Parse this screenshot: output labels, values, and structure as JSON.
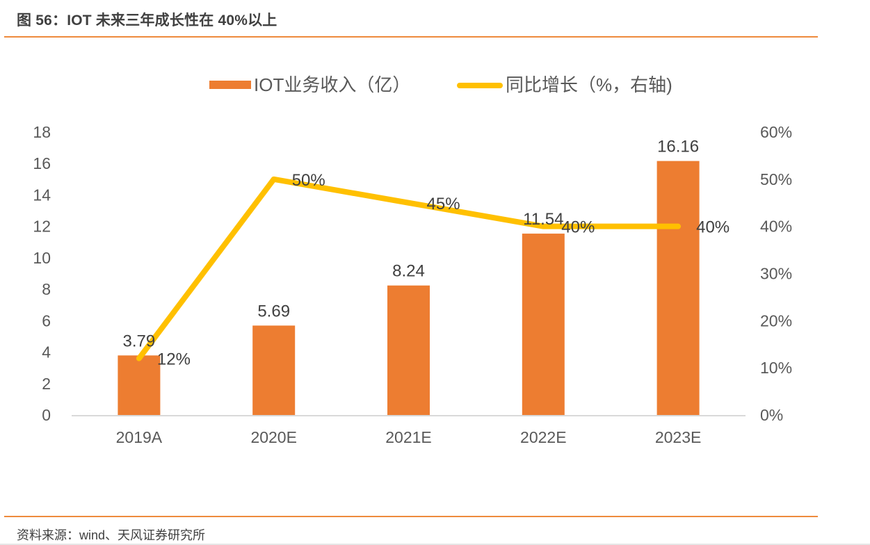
{
  "header": {
    "title": "图 56：IOT 未来三年成长性在 40%以上"
  },
  "footer": {
    "source": "资料来源：wind、天风证券研究所"
  },
  "chart_data": {
    "type": "bar+line",
    "title": "",
    "categories": [
      "2019A",
      "2020E",
      "2021E",
      "2022E",
      "2023E"
    ],
    "series": [
      {
        "name": "IOT业务收入（亿）",
        "type": "bar",
        "axis": "left",
        "color": "#ed7d31",
        "values": [
          3.79,
          5.69,
          8.24,
          11.54,
          16.16
        ],
        "labels": [
          "3.79",
          "5.69",
          "8.24",
          "11.54",
          "16.16"
        ]
      },
      {
        "name": "同比增长（%，右轴)",
        "type": "line",
        "axis": "right",
        "color": "#ffc000",
        "values": [
          12,
          50,
          45,
          40,
          40
        ],
        "labels": [
          "12%",
          "50%",
          "45%",
          "40%",
          "40%"
        ]
      }
    ],
    "left_axis": {
      "ylim": [
        0,
        18
      ],
      "ticks": [
        0,
        2,
        4,
        6,
        8,
        10,
        12,
        14,
        16,
        18
      ],
      "tick_labels": [
        "0",
        "2",
        "4",
        "6",
        "8",
        "10",
        "12",
        "14",
        "16",
        "18"
      ]
    },
    "right_axis": {
      "ylim": [
        0,
        60
      ],
      "ticks": [
        0,
        10,
        20,
        30,
        40,
        50,
        60
      ],
      "tick_labels": [
        "0%",
        "10%",
        "20%",
        "30%",
        "40%",
        "50%",
        "60%"
      ]
    },
    "xlabel": "",
    "ylabel": "",
    "grid": false,
    "legend_position": "top"
  }
}
